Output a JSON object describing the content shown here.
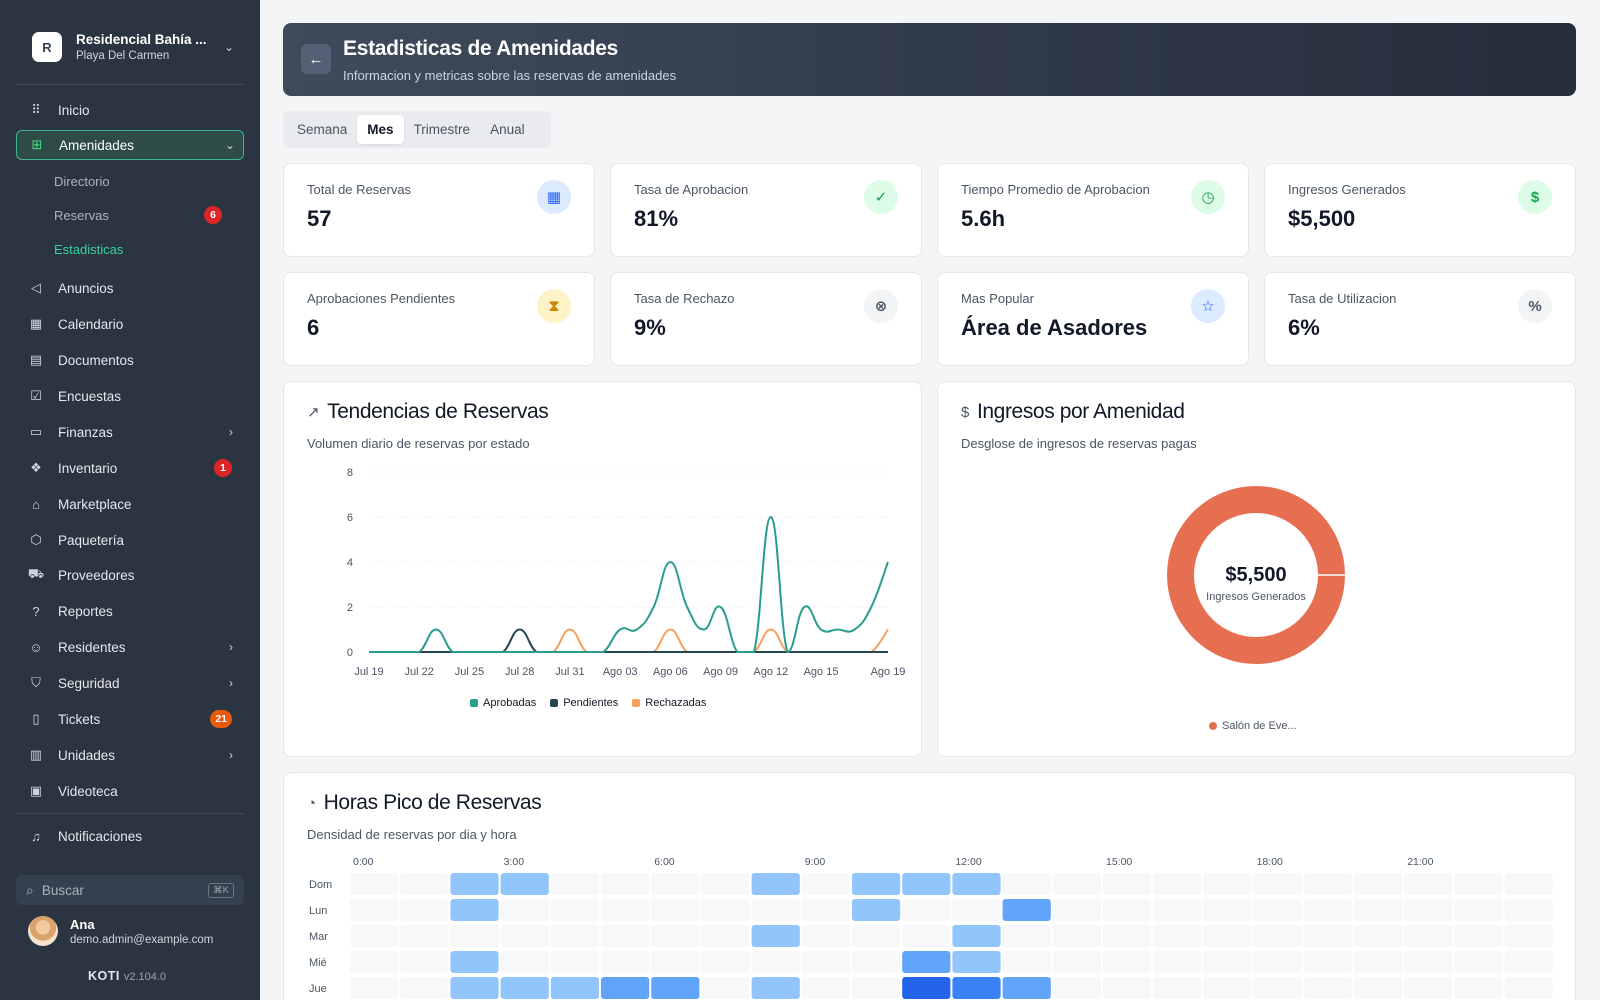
{
  "org": {
    "initial": "R",
    "name": "Residencial Bahía ...",
    "location": "Playa Del Carmen"
  },
  "sidebar": {
    "items": [
      {
        "label": "Inicio",
        "icon": "grid-dots-icon"
      },
      {
        "label": "Amenidades",
        "icon": "gift-icon",
        "active": true
      },
      {
        "label": "Anuncios",
        "icon": "megaphone-icon"
      },
      {
        "label": "Calendario",
        "icon": "calendar-icon"
      },
      {
        "label": "Documentos",
        "icon": "document-icon"
      },
      {
        "label": "Encuestas",
        "icon": "poll-icon"
      },
      {
        "label": "Finanzas",
        "icon": "wallet-icon"
      },
      {
        "label": "Inventario",
        "icon": "boxes-icon",
        "badge": "1"
      },
      {
        "label": "Marketplace",
        "icon": "store-icon"
      },
      {
        "label": "Paquetería",
        "icon": "package-icon"
      },
      {
        "label": "Proveedores",
        "icon": "truck-icon"
      },
      {
        "label": "Reportes",
        "icon": "help-circle-icon"
      },
      {
        "label": "Residentes",
        "icon": "users-icon"
      },
      {
        "label": "Seguridad",
        "icon": "shield-icon"
      },
      {
        "label": "Tickets",
        "icon": "ticket-icon",
        "badge": "21"
      },
      {
        "label": "Unidades",
        "icon": "building-icon"
      },
      {
        "label": "Videoteca",
        "icon": "video-icon"
      },
      {
        "label": "Notificaciones",
        "icon": "bell-icon"
      }
    ],
    "sub_items": [
      {
        "label": "Directorio"
      },
      {
        "label": "Reservas",
        "badge": "6"
      },
      {
        "label": "Estadisticas",
        "current": true
      }
    ],
    "search_placeholder": "Buscar",
    "search_shortcut": "⌘K"
  },
  "user": {
    "name": "Ana",
    "email": "demo.admin@example.com"
  },
  "app": {
    "name": "KOTI",
    "version": "v2.104.0"
  },
  "header": {
    "title": "Estadisticas de Amenidades",
    "subtitle": "Informacion y metricas sobre las reservas de amenidades"
  },
  "tabs": [
    {
      "label": "Semana"
    },
    {
      "label": "Mes",
      "selected": true
    },
    {
      "label": "Trimestre"
    },
    {
      "label": "Anual"
    }
  ],
  "kpis": [
    {
      "label": "Total de Reservas",
      "value": "57",
      "icon": "calendar-icon",
      "color": "#2563eb"
    },
    {
      "label": "Tasa de Aprobacion",
      "value": "81%",
      "icon": "check-circle-icon",
      "color": "#16a34a"
    },
    {
      "label": "Tiempo Promedio de Aprobacion",
      "value": "5.6h",
      "icon": "clock-icon",
      "color": "#16a34a"
    },
    {
      "label": "Ingresos Generados",
      "value": "$5,500",
      "icon": "dollar-icon",
      "color": "#16a34a"
    },
    {
      "label": "Aprobaciones Pendientes",
      "value": "6",
      "icon": "hourglass-icon",
      "color": "#ca8a04"
    },
    {
      "label": "Tasa de Rechazo",
      "value": "9%",
      "icon": "x-circle-icon",
      "color": "#4b5563"
    },
    {
      "label": "Mas Popular",
      "value": "Área de Asadores",
      "icon": "star-icon",
      "color": "#2563eb"
    },
    {
      "label": "Tasa de Utilizacion",
      "value": "6%",
      "icon": "percent-icon",
      "color": "#4b5563"
    }
  ],
  "trends": {
    "title": "Tendencias de Reservas",
    "subtitle": "Volumen diario de reservas por estado",
    "icon": "trending-up-icon"
  },
  "revenue": {
    "title": "Ingresos por Amenidad",
    "subtitle": "Desglose de ingresos de reservas pagas",
    "icon": "dollar-icon",
    "center_value": "$5,500",
    "center_label": "Ingresos Generados"
  },
  "peak": {
    "title": "Horas Pico de Reservas",
    "subtitle": "Densidad de reservas por dia y hora",
    "icon": "calendar-clock-icon"
  },
  "chart_data": [
    {
      "type": "line",
      "title": "Tendencias de Reservas",
      "x_ticks": [
        "Jul 19",
        "Jul 22",
        "Jul 25",
        "Jul 28",
        "Jul 31",
        "Ago 03",
        "Ago 06",
        "Ago 09",
        "Ago 12",
        "Ago 15",
        "Ago 19"
      ],
      "x": [
        "Jul 19",
        "Jul 20",
        "Jul 21",
        "Jul 22",
        "Jul 23",
        "Jul 24",
        "Jul 25",
        "Jul 26",
        "Jul 27",
        "Jul 28",
        "Jul 29",
        "Jul 30",
        "Jul 31",
        "Ago 01",
        "Ago 02",
        "Ago 03",
        "Ago 04",
        "Ago 05",
        "Ago 06",
        "Ago 07",
        "Ago 08",
        "Ago 09",
        "Ago 10",
        "Ago 11",
        "Ago 12",
        "Ago 13",
        "Ago 14",
        "Ago 15",
        "Ago 16",
        "Ago 17",
        "Ago 18",
        "Ago 19"
      ],
      "ylim": [
        0,
        8
      ],
      "y_ticks": [
        0,
        2,
        4,
        6,
        8
      ],
      "series": [
        {
          "name": "Aprobadas",
          "color": "#2a9d8f",
          "values": [
            0,
            0,
            0,
            0,
            1,
            0,
            0,
            0,
            0,
            0,
            0,
            0,
            0,
            0,
            0,
            1,
            1,
            2,
            4,
            2,
            1,
            2,
            0,
            0,
            6,
            0,
            2,
            1,
            1,
            1,
            2,
            4
          ]
        },
        {
          "name": "Pendientes",
          "color": "#264653",
          "values": [
            0,
            0,
            0,
            0,
            0,
            0,
            0,
            0,
            0,
            1,
            0,
            0,
            0,
            0,
            0,
            0,
            0,
            0,
            0,
            0,
            0,
            0,
            0,
            0,
            0,
            0,
            0,
            0,
            0,
            0,
            0,
            0
          ]
        },
        {
          "name": "Rechazadas",
          "color": "#f4a261",
          "values": [
            0,
            0,
            0,
            0,
            0,
            0,
            0,
            0,
            0,
            0,
            0,
            0,
            1,
            0,
            0,
            0,
            0,
            0,
            1,
            0,
            0,
            0,
            0,
            0,
            1,
            0,
            0,
            0,
            0,
            0,
            0,
            1
          ]
        }
      ]
    },
    {
      "type": "pie",
      "title": "Ingresos por Amenidad",
      "categories": [
        "Salón de Eve..."
      ],
      "values": [
        5500
      ],
      "colors": [
        "#e76f51"
      ]
    },
    {
      "type": "heatmap",
      "title": "Horas Pico de Reservas",
      "x_ticks": [
        "0:00",
        "3:00",
        "6:00",
        "9:00",
        "12:00",
        "15:00",
        "18:00",
        "21:00"
      ],
      "rows": [
        "Dom",
        "Lun",
        "Mar",
        "Mié",
        "Jue"
      ],
      "values": [
        [
          0,
          0,
          1,
          1,
          0,
          0,
          0,
          0,
          1,
          0,
          1,
          1,
          1,
          0,
          0,
          0,
          0,
          0,
          0,
          0,
          0,
          0,
          0,
          0
        ],
        [
          0,
          0,
          1,
          0,
          0,
          0,
          0,
          0,
          0,
          0,
          1,
          0,
          0,
          2,
          0,
          0,
          0,
          0,
          0,
          0,
          0,
          0,
          0,
          0
        ],
        [
          0,
          0,
          0,
          0,
          0,
          0,
          0,
          0,
          1,
          0,
          0,
          0,
          1,
          0,
          0,
          0,
          0,
          0,
          0,
          0,
          0,
          0,
          0,
          0
        ],
        [
          0,
          0,
          1,
          0,
          0,
          0,
          0,
          0,
          0,
          0,
          0,
          2,
          1,
          0,
          0,
          0,
          0,
          0,
          0,
          0,
          0,
          0,
          0,
          0
        ],
        [
          0,
          0,
          1,
          1,
          1,
          2,
          2,
          0,
          1,
          0,
          0,
          4,
          3,
          2,
          0,
          0,
          0,
          0,
          0,
          0,
          0,
          0,
          0,
          0
        ]
      ]
    }
  ]
}
